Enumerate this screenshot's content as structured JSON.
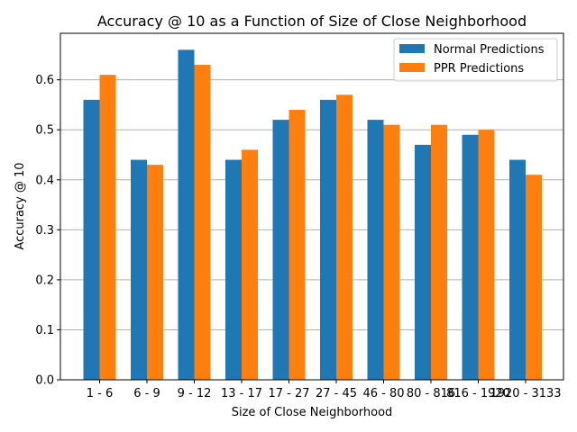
{
  "chart_data": {
    "type": "bar",
    "title": "Accuracy @ 10 as a Function of Size of Close Neighborhood",
    "xlabel": "Size of Close Neighborhood",
    "ylabel": "Accuracy @ 10",
    "categories": [
      "1 - 6",
      "6 - 9",
      "9 - 12",
      "13 - 17",
      "17 - 27",
      "27 - 45",
      "46 - 80",
      "80 - 816",
      "816 - 1920",
      "1920 - 3133"
    ],
    "series": [
      {
        "name": "Normal Predictions",
        "color": "#1f77b4",
        "values": [
          0.56,
          0.44,
          0.66,
          0.44,
          0.52,
          0.56,
          0.52,
          0.47,
          0.49,
          0.44
        ]
      },
      {
        "name": "PPR Predictions",
        "color": "#ff7f0e",
        "values": [
          0.61,
          0.43,
          0.63,
          0.46,
          0.54,
          0.57,
          0.51,
          0.51,
          0.5,
          0.41
        ]
      }
    ],
    "ylim": [
      0,
      0.693
    ],
    "yticks": [
      0.0,
      0.1,
      0.2,
      0.3,
      0.4,
      0.5,
      0.6
    ],
    "ytick_labels": [
      "0.0",
      "0.1",
      "0.2",
      "0.3",
      "0.4",
      "0.5",
      "0.6"
    ],
    "grid": "horizontal",
    "legend_position": "top-right"
  }
}
